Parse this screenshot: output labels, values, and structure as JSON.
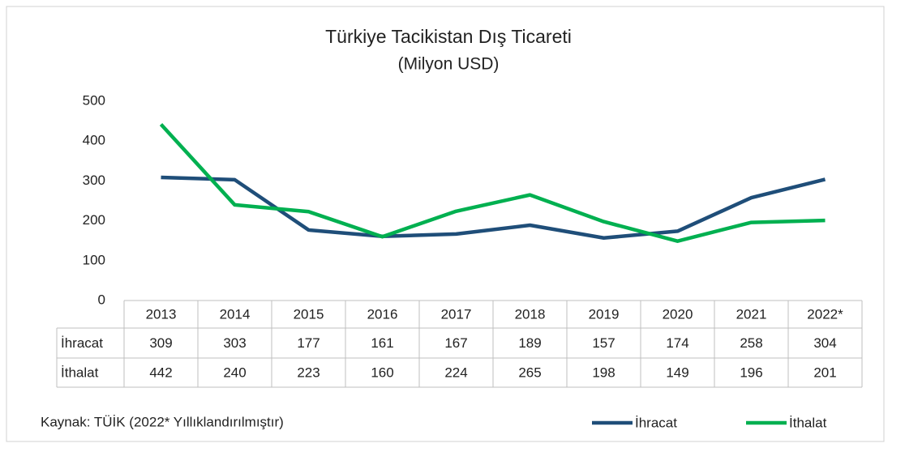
{
  "chart_data": {
    "type": "line",
    "title": "Türkiye Tacikistan Dış Ticareti",
    "subtitle": "(Milyon USD)",
    "source": "Kaynak: TÜİK (2022* Yıllıklandırılmıştır)",
    "categories": [
      "2013",
      "2014",
      "2015",
      "2016",
      "2017",
      "2018",
      "2019",
      "2020",
      "2021",
      "2022*"
    ],
    "series": [
      {
        "name": "İhracat",
        "color": "#1f4e79",
        "values": [
          309,
          303,
          177,
          161,
          167,
          189,
          157,
          174,
          258,
          304
        ]
      },
      {
        "name": "İthalat",
        "color": "#00b050",
        "values": [
          442,
          240,
          223,
          160,
          224,
          265,
          198,
          149,
          196,
          201
        ]
      }
    ],
    "ylim": [
      0,
      500
    ],
    "yticks": [
      0,
      100,
      200,
      300,
      400,
      500
    ],
    "grid": false,
    "legend": "bottom-right"
  }
}
